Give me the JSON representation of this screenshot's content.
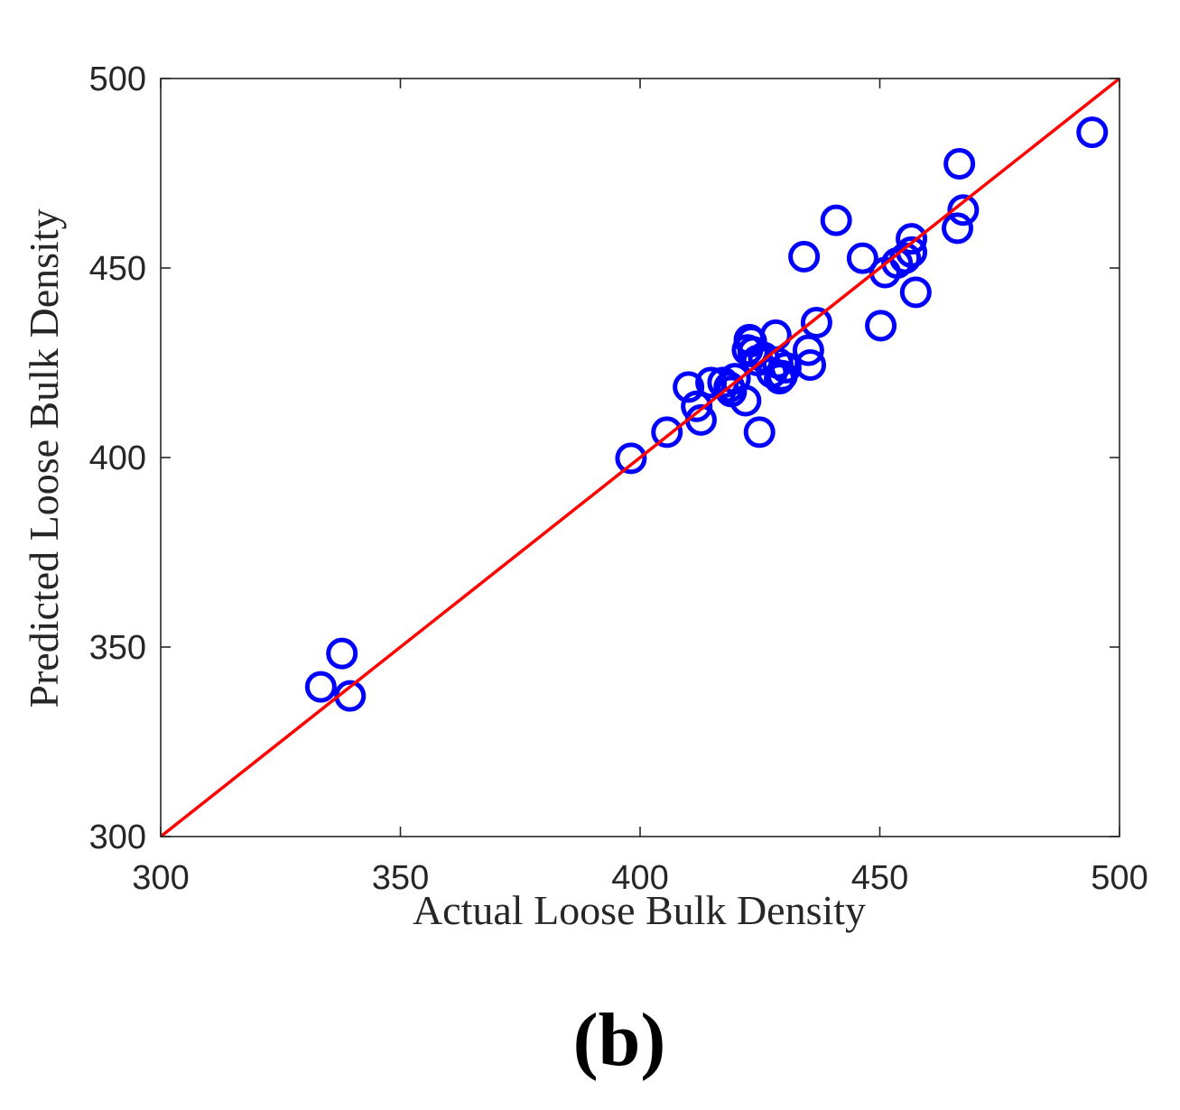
{
  "chart_data": {
    "type": "scatter",
    "xlabel": "Actual Loose Bulk Density",
    "ylabel": "Predicted Loose Bulk Density",
    "xlim": [
      300,
      500
    ],
    "ylim": [
      300,
      500
    ],
    "xticks": [
      300,
      350,
      400,
      450,
      500
    ],
    "yticks": [
      300,
      350,
      400,
      450,
      500
    ],
    "grid": false,
    "panel_label": "(b)",
    "reference_line": {
      "type": "identity",
      "from": [
        300,
        300
      ],
      "to": [
        500,
        500
      ],
      "color": "#ff0000"
    },
    "series": [
      {
        "marker": "open-circle",
        "color": "#0000ff",
        "points": [
          [
            333.4,
            339.5
          ],
          [
            337.8,
            348.3
          ],
          [
            339.5,
            337.1
          ],
          [
            398.1,
            399.8
          ],
          [
            405.6,
            406.7
          ],
          [
            410.1,
            418.6
          ],
          [
            411.8,
            413.5
          ],
          [
            412.7,
            409.9
          ],
          [
            414.8,
            419.8
          ],
          [
            417.3,
            419.8
          ],
          [
            418.6,
            418.6
          ],
          [
            419.0,
            417.4
          ],
          [
            419.8,
            420.8
          ],
          [
            422.0,
            415.0
          ],
          [
            422.4,
            428.4
          ],
          [
            422.8,
            431.1
          ],
          [
            423.2,
            430.6
          ],
          [
            423.6,
            427.9
          ],
          [
            424.5,
            425.6
          ],
          [
            424.9,
            406.7
          ],
          [
            425.8,
            426.4
          ],
          [
            427.5,
            422.4
          ],
          [
            428.3,
            432.3
          ],
          [
            428.7,
            424.9
          ],
          [
            429.1,
            420.8
          ],
          [
            429.6,
            421.6
          ],
          [
            430.4,
            423.7
          ],
          [
            434.2,
            453.0
          ],
          [
            435.1,
            428.3
          ],
          [
            435.5,
            424.4
          ],
          [
            436.8,
            435.6
          ],
          [
            440.9,
            462.6
          ],
          [
            446.4,
            452.6
          ],
          [
            450.2,
            434.8
          ],
          [
            451.1,
            448.8
          ],
          [
            453.6,
            451.3
          ],
          [
            455.3,
            452.6
          ],
          [
            456.6,
            454.2
          ],
          [
            456.6,
            457.7
          ],
          [
            457.5,
            443.6
          ],
          [
            466.2,
            460.5
          ],
          [
            466.6,
            477.5
          ],
          [
            467.4,
            465.3
          ],
          [
            494.3,
            485.8
          ]
        ]
      }
    ]
  }
}
